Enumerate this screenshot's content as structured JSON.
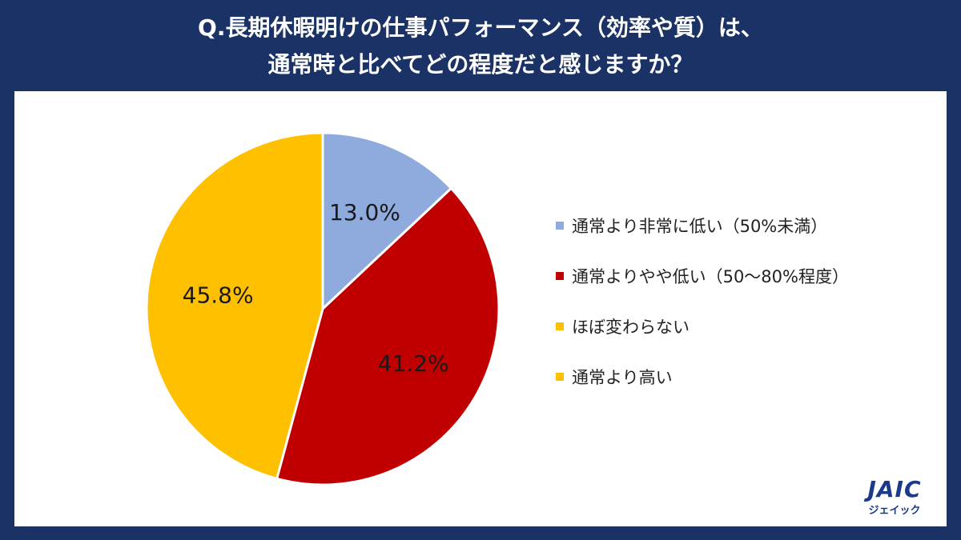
{
  "title_line1": "Q.長期休暇明けの仕事パフォーマンス（効率や質）は、",
  "title_line2": "通常時と比べてどの程度だと感じますか？",
  "chart_data": {
    "type": "pie",
    "categories": [
      "通常より非常に低い（50%未満）",
      "通常よりやや低い（50～80%程度）",
      "ほぼ変わらない",
      "通常より高い"
    ],
    "values": [
      13.0,
      41.2,
      45.8,
      0.0
    ],
    "labels": [
      "13.0%",
      "41.2%",
      "45.8%",
      ""
    ],
    "colors": [
      "#8faadc",
      "#c00000",
      "#ffc000",
      "#ffc000"
    ],
    "legend_position": "right"
  },
  "logo": {
    "mark": "JAIC",
    "sub": "ジェイック"
  }
}
